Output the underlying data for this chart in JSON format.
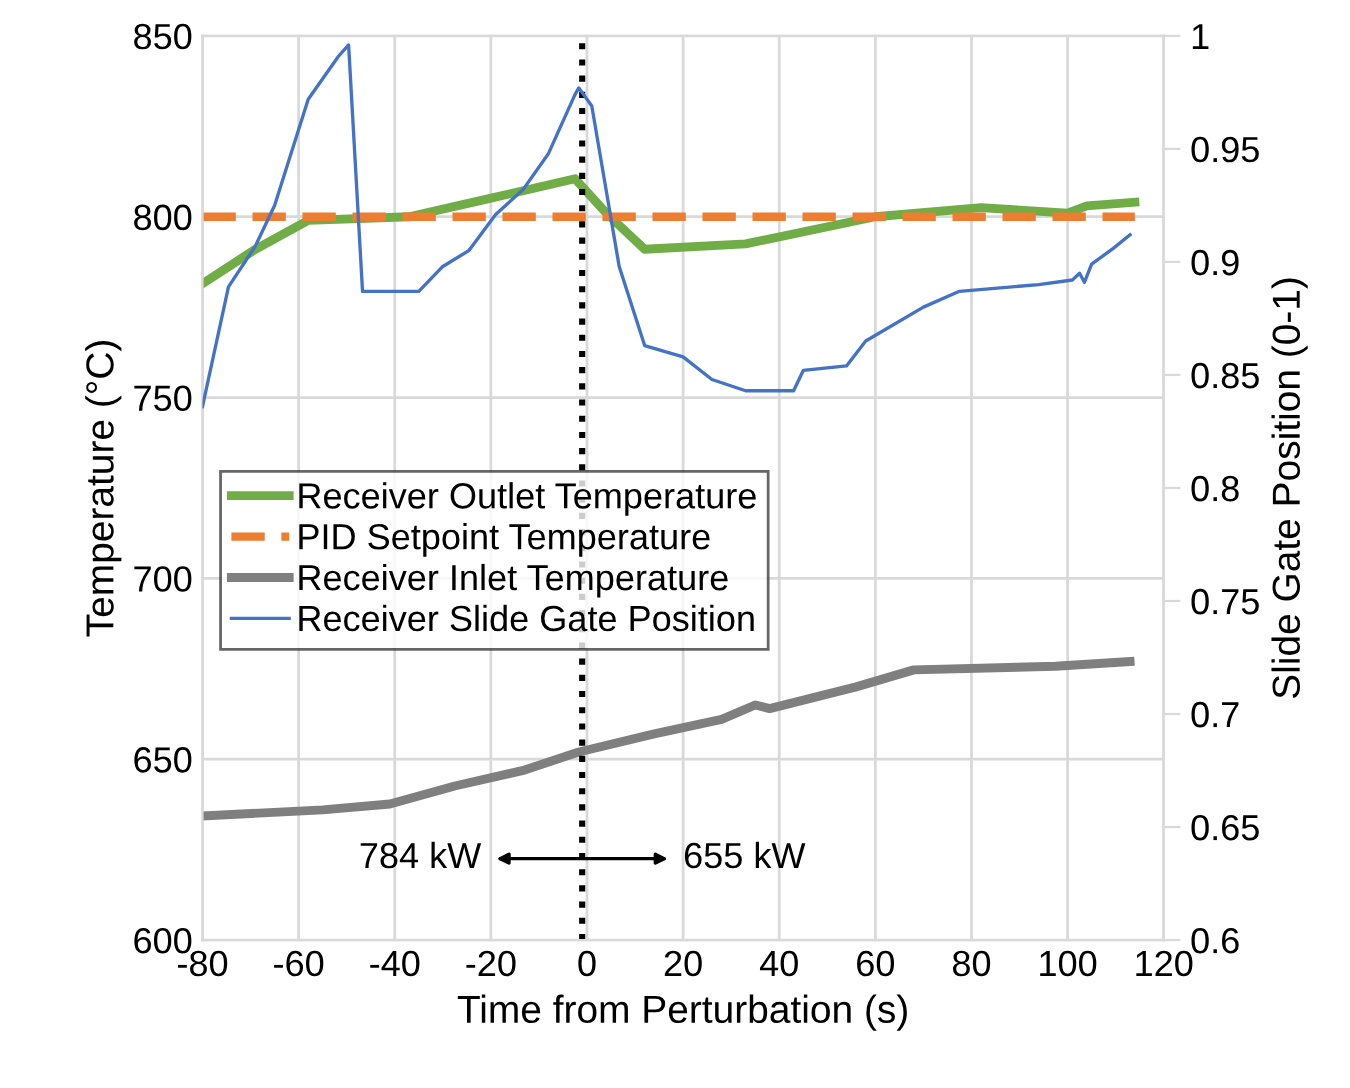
{
  "chart_data": {
    "type": "line",
    "xlabel": "Time from Perturbation (s)",
    "ylabel": "Temperature (°C)",
    "y2label": "Slide Gate Position (0-1)",
    "xlim": [
      -80,
      120
    ],
    "xticks": [
      -80,
      -60,
      -40,
      -20,
      0,
      20,
      40,
      60,
      80,
      100,
      120
    ],
    "ylim": [
      600,
      850
    ],
    "yticks": [
      600,
      650,
      700,
      750,
      800,
      850
    ],
    "y2lim": [
      0.6,
      1
    ],
    "y2ticks": [
      0.6,
      0.65,
      0.7,
      0.75,
      0.8,
      0.85,
      0.9,
      0.95,
      1
    ],
    "grid": true,
    "legend": "left",
    "series": [
      {
        "name": "Receiver Outlet Temperature",
        "color": "#70ad47",
        "line_style": "solid",
        "x": [
          -80,
          -69,
          -58,
          -37,
          -22,
          -2.5,
          4,
          12,
          33,
          60,
          82,
          100,
          104,
          114
        ],
        "values": [
          781.5,
          791,
          799,
          800,
          804.5,
          810.5,
          801,
          791,
          792.5,
          800,
          802.5,
          801,
          803,
          804
        ]
      },
      {
        "name": "PID Setpoint Temperature",
        "color": "#ed7d31",
        "line_style": "dashed",
        "x": [
          -80,
          114
        ],
        "values": [
          800,
          800
        ]
      },
      {
        "name": "Receiver Inlet Temperature",
        "color": "#7f7f7f",
        "line_style": "solid",
        "x": [
          -80,
          -55,
          -41,
          -27.5,
          -13,
          -1.7,
          14,
          28,
          35,
          38,
          56,
          68,
          97.5,
          113
        ],
        "values": [
          634.3,
          636,
          637.6,
          642.6,
          647,
          652,
          657,
          661,
          665,
          664,
          670,
          674.7,
          675.7,
          677
        ]
      },
      {
        "name": "Receiver Slide Gate Position",
        "color": "#4472c4",
        "line_style": "solid",
        "axis": "y2",
        "x": [
          -80,
          -74.6,
          -69,
          -65,
          -58,
          -51.7,
          -49.6,
          -46.7,
          -35,
          -30,
          -24.6,
          -19,
          -13.3,
          -8,
          -2.5,
          -1.7,
          1,
          6.7,
          12,
          20,
          26,
          33,
          43,
          45,
          54,
          58,
          70,
          77.5,
          94,
          101,
          102.5,
          103.5,
          105,
          109.5,
          113
        ],
        "values": [
          0.836,
          0.889,
          0.907,
          0.925,
          0.972,
          0.991,
          0.996,
          0.887,
          0.887,
          0.898,
          0.905,
          0.921,
          0.932,
          0.948,
          0.974,
          0.977,
          0.969,
          0.898,
          0.863,
          0.858,
          0.848,
          0.843,
          0.843,
          0.852,
          0.854,
          0.865,
          0.88,
          0.887,
          0.89,
          0.892,
          0.895,
          0.891,
          0.899,
          0.906,
          0.912
        ]
      }
    ],
    "ref_lines": [
      {
        "axis": "x",
        "value": -1,
        "color": "#000000",
        "line_style": "dotted"
      }
    ],
    "annotations": [
      "784 kW",
      "655 kW"
    ]
  }
}
